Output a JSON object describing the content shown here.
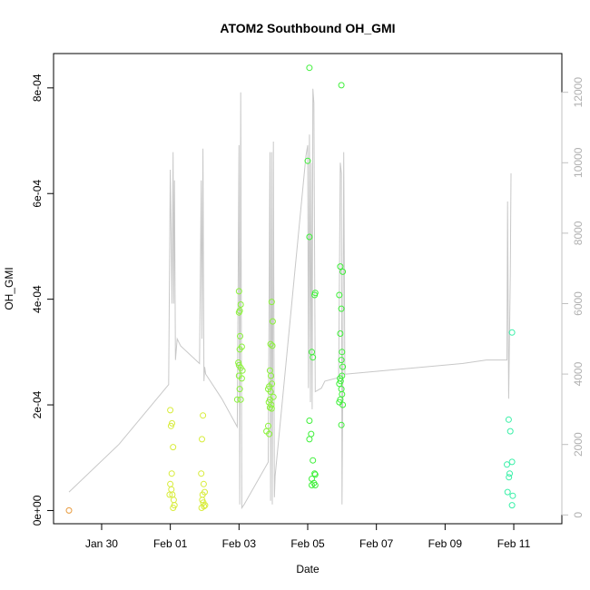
{
  "chart_data": {
    "type": "scatter",
    "title": "ATOM2 Southbound OH_GMI",
    "xlabel": "Date",
    "ylabel": "OH_GMI",
    "x_tick_labels": [
      "Jan 30",
      "Feb 01",
      "Feb 03",
      "Feb 05",
      "Feb 07",
      "Feb 09",
      "Feb 11"
    ],
    "x_tick_days": [
      30,
      32,
      34,
      36,
      38,
      40,
      42
    ],
    "xlim_days": [
      28.6,
      43.4
    ],
    "left_axis": {
      "ylim": [
        -2.5e-05,
        0.000865
      ],
      "tick_values": [
        0,
        0.0002,
        0.0004,
        0.0006,
        0.0008
      ],
      "tick_labels": [
        "0e+00",
        "2e-04",
        "4e-04",
        "6e-04",
        "8e-04"
      ]
    },
    "right_axis": {
      "ylim": [
        -250,
        13100
      ],
      "tick_values": [
        0,
        2000,
        4000,
        6000,
        8000,
        10000,
        12000
      ],
      "tick_labels": [
        "0",
        "2000",
        "4000",
        "6000",
        "8000",
        "10000",
        "12000"
      ],
      "color": "#c0c0c0"
    },
    "altitude_line": {
      "color": "#c8c8c8",
      "points": [
        [
          29.05,
          650
        ],
        [
          30.5,
          2000
        ],
        [
          31.95,
          3700
        ],
        [
          32.0,
          9800
        ],
        [
          32.05,
          6000
        ],
        [
          32.08,
          10300
        ],
        [
          32.1,
          6000
        ],
        [
          32.12,
          9500
        ],
        [
          32.15,
          4400
        ],
        [
          32.2,
          5000
        ],
        [
          32.3,
          4800
        ],
        [
          32.85,
          4300
        ],
        [
          32.9,
          9500
        ],
        [
          32.92,
          5000
        ],
        [
          32.95,
          10400
        ],
        [
          32.98,
          3800
        ],
        [
          33.0,
          4200
        ],
        [
          33.03,
          4000
        ],
        [
          33.5,
          3300
        ],
        [
          33.95,
          2500
        ],
        [
          34.0,
          10500
        ],
        [
          34.02,
          300
        ],
        [
          34.05,
          12000
        ],
        [
          34.08,
          200
        ],
        [
          34.15,
          300
        ],
        [
          34.85,
          1500
        ],
        [
          34.9,
          10300
        ],
        [
          34.92,
          400
        ],
        [
          34.95,
          10300
        ],
        [
          34.97,
          300
        ],
        [
          35.0,
          10600
        ],
        [
          35.03,
          500
        ],
        [
          35.05,
          1100
        ],
        [
          35.95,
          10200
        ],
        [
          36.0,
          10500
        ],
        [
          36.02,
          3600
        ],
        [
          36.05,
          10800
        ],
        [
          36.08,
          3200
        ],
        [
          36.1,
          10000
        ],
        [
          36.13,
          3000
        ],
        [
          36.15,
          12100
        ],
        [
          36.18,
          11700
        ],
        [
          36.22,
          3500
        ],
        [
          36.4,
          3600
        ],
        [
          36.5,
          3800
        ],
        [
          36.9,
          3900
        ],
        [
          36.95,
          10000
        ],
        [
          36.98,
          9700
        ],
        [
          37.0,
          300
        ],
        [
          37.02,
          3400
        ],
        [
          37.05,
          10300
        ],
        [
          37.08,
          4000
        ],
        [
          37.12,
          4000
        ],
        [
          40.5,
          4300
        ],
        [
          41.2,
          4400
        ],
        [
          41.8,
          4400
        ],
        [
          41.82,
          8900
        ],
        [
          41.85,
          3300
        ],
        [
          41.9,
          6800
        ],
        [
          41.92,
          9700
        ]
      ]
    },
    "series": [
      {
        "color": "#e89a3c",
        "points": [
          [
            29.05,
            0.0
          ]
        ]
      },
      {
        "color": "#d8ec3a",
        "points": [
          [
            32.0,
            0.00019
          ],
          [
            32.02,
            0.00016
          ],
          [
            32.05,
            0.000165
          ],
          [
            32.08,
            0.00012
          ],
          [
            32.0,
            5e-05
          ],
          [
            32.03,
            4e-05
          ],
          [
            32.06,
            3e-05
          ],
          [
            32.1,
            2e-05
          ],
          [
            32.04,
            7e-05
          ],
          [
            31.98,
            3e-05
          ],
          [
            32.12,
            1e-05
          ],
          [
            32.08,
            5e-06
          ],
          [
            32.95,
            0.00018
          ],
          [
            32.92,
            0.000135
          ],
          [
            32.9,
            7e-05
          ],
          [
            32.97,
            5e-05
          ],
          [
            32.94,
            3e-05
          ],
          [
            33.0,
            3.5e-05
          ],
          [
            32.93,
            2e-05
          ],
          [
            32.96,
            1.5e-05
          ],
          [
            32.98,
            8e-06
          ],
          [
            33.01,
            1e-05
          ],
          [
            32.91,
            5e-06
          ]
        ]
      },
      {
        "color": "#8af23a",
        "points": [
          [
            34.0,
            0.000415
          ],
          [
            34.05,
            0.00039
          ],
          [
            34.02,
            0.000378
          ],
          [
            34.0,
            0.000375
          ],
          [
            34.03,
            0.00033
          ],
          [
            34.08,
            0.00031
          ],
          [
            34.02,
            0.000305
          ],
          [
            33.98,
            0.00028
          ],
          [
            34.0,
            0.000275
          ],
          [
            34.05,
            0.00027
          ],
          [
            34.1,
            0.000265
          ],
          [
            34.0,
            0.000255
          ],
          [
            34.08,
            0.00025
          ],
          [
            34.02,
            0.00023
          ],
          [
            33.95,
            0.00021
          ],
          [
            34.05,
            0.00021
          ],
          [
            34.95,
            0.000395
          ],
          [
            34.98,
            0.000358
          ],
          [
            34.92,
            0.000315
          ],
          [
            34.97,
            0.000312
          ],
          [
            34.9,
            0.000265
          ],
          [
            34.93,
            0.000255
          ],
          [
            34.96,
            0.00024
          ],
          [
            34.88,
            0.000235
          ],
          [
            34.85,
            0.00023
          ],
          [
            34.92,
            0.000225
          ],
          [
            35.0,
            0.000215
          ],
          [
            34.9,
            0.00021
          ],
          [
            34.87,
            0.000205
          ],
          [
            34.94,
            0.0002
          ],
          [
            34.9,
            0.000195
          ],
          [
            34.95,
            0.000193
          ],
          [
            34.85,
            0.00016
          ],
          [
            34.88,
            0.000145
          ],
          [
            34.8,
            0.00015
          ]
        ]
      },
      {
        "color": "#3ff03a",
        "points": [
          [
            36.05,
            0.000838
          ],
          [
            36.0,
            0.000662
          ],
          [
            36.05,
            0.000518
          ],
          [
            36.22,
            0.000412
          ],
          [
            36.2,
            0.000408
          ],
          [
            36.12,
            0.0003
          ],
          [
            36.15,
            0.00029
          ],
          [
            36.05,
            0.00017
          ],
          [
            36.1,
            0.000145
          ],
          [
            36.05,
            0.000135
          ],
          [
            36.15,
            9.5e-05
          ],
          [
            36.2,
            7e-05
          ],
          [
            36.22,
            6.8e-05
          ],
          [
            36.12,
            6e-05
          ],
          [
            36.18,
            5.2e-05
          ],
          [
            36.22,
            4.8e-05
          ],
          [
            36.12,
            4.8e-05
          ],
          [
            36.98,
            0.000805
          ],
          [
            36.95,
            0.000462
          ],
          [
            37.02,
            0.000452
          ],
          [
            36.92,
            0.000408
          ],
          [
            36.98,
            0.000382
          ],
          [
            36.95,
            0.000335
          ],
          [
            37.0,
            0.0003
          ],
          [
            36.98,
            0.000285
          ],
          [
            37.02,
            0.000272
          ],
          [
            37.0,
            0.000255
          ],
          [
            36.94,
            0.00025
          ],
          [
            36.96,
            0.000245
          ],
          [
            36.92,
            0.00024
          ],
          [
            36.98,
            0.00023
          ],
          [
            37.0,
            0.00022
          ],
          [
            36.95,
            0.00021
          ],
          [
            36.92,
            0.000205
          ],
          [
            37.02,
            0.0002
          ],
          [
            36.98,
            0.000162
          ]
        ]
      },
      {
        "color": "#3af0a8",
        "points": [
          [
            41.95,
            0.000337
          ],
          [
            41.85,
            0.000172
          ],
          [
            41.9,
            0.00015
          ],
          [
            41.95,
            9.2e-05
          ],
          [
            41.8,
            8.7e-05
          ],
          [
            41.88,
            7e-05
          ],
          [
            41.86,
            6.3e-05
          ],
          [
            41.82,
            3.5e-05
          ],
          [
            41.97,
            2.8e-05
          ],
          [
            41.95,
            1e-05
          ]
        ]
      }
    ]
  }
}
